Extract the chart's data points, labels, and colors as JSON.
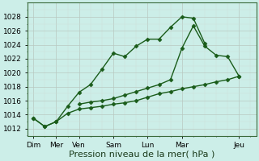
{
  "background_color": "#cceee8",
  "grid_color": "#b8c8c0",
  "grid_color_minor": "#d0ddd8",
  "line_color": "#1a5c1a",
  "xlabel": "Pression niveau de la mer( hPa )",
  "xlabel_fontsize": 8,
  "ylim": [
    1011.0,
    1030.0
  ],
  "yticks": [
    1012,
    1014,
    1016,
    1018,
    1020,
    1022,
    1024,
    1026,
    1028
  ],
  "xtick_labels": [
    "Dim",
    "Mer",
    "Ven",
    "Sam",
    "Lun",
    "Mar",
    "Jeu"
  ],
  "xtick_positions": [
    0,
    2,
    4,
    7,
    10,
    13,
    18
  ],
  "xlim": [
    -0.5,
    19.5
  ],
  "line1_x": [
    0,
    1,
    2,
    3,
    4,
    5,
    6,
    7,
    8,
    9,
    10,
    11,
    12,
    13,
    14,
    15
  ],
  "line1_y": [
    1013.5,
    1012.3,
    1013.0,
    1015.2,
    1017.2,
    1018.3,
    1020.5,
    1022.8,
    1022.3,
    1023.8,
    1024.8,
    1024.8,
    1026.5,
    1028.0,
    1027.8,
    1024.2
  ],
  "line2_x": [
    0,
    1,
    2,
    3,
    4,
    5,
    6,
    7,
    8,
    9,
    10,
    11,
    12,
    13,
    14,
    15,
    16,
    17,
    18
  ],
  "line2_y": [
    1013.5,
    1012.3,
    1013.0,
    1014.2,
    1014.8,
    1015.0,
    1015.2,
    1015.5,
    1015.7,
    1016.0,
    1016.5,
    1017.0,
    1017.3,
    1017.7,
    1018.0,
    1018.3,
    1018.7,
    1019.0,
    1019.5
  ],
  "line3_x": [
    4,
    5,
    6,
    7,
    8,
    9,
    10,
    11,
    12,
    13,
    14,
    15,
    16,
    17,
    18
  ],
  "line3_y": [
    1015.5,
    1015.8,
    1016.0,
    1016.3,
    1016.8,
    1017.3,
    1017.8,
    1018.3,
    1019.0,
    1023.5,
    1026.7,
    1023.8,
    1022.5,
    1022.3,
    1019.5
  ],
  "marker": "D",
  "marker_size": 2.5,
  "line_width": 1.0,
  "tick_fontsize": 6.5,
  "figsize": [
    3.2,
    2.0
  ],
  "dpi": 100
}
